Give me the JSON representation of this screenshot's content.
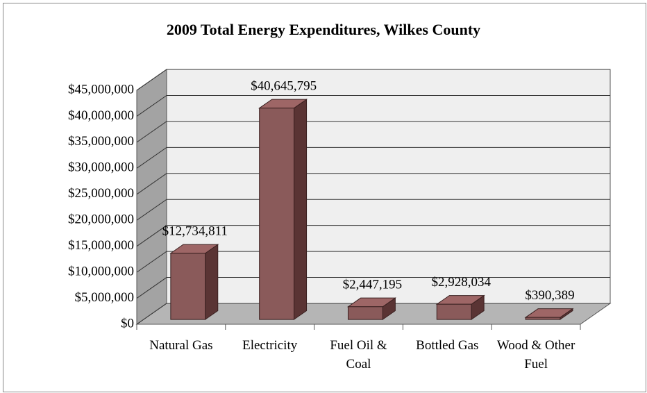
{
  "chart_data": {
    "type": "bar3d",
    "title": "2009 Total Energy Expenditures, Wilkes County",
    "categories": [
      "Natural Gas",
      "Electricity",
      "Fuel Oil & Coal",
      "Bottled Gas",
      "Wood & Other Fuel"
    ],
    "values": [
      12734811,
      40645795,
      2447195,
      2928034,
      390389
    ],
    "value_labels": [
      "$12,734,811",
      "$40,645,795",
      "$2,447,195",
      "$2,928,034",
      "$390,389"
    ],
    "color": "#8a5a5a",
    "ylim": [
      0,
      45000000
    ],
    "yticks": [
      {
        "value": 0,
        "label": "$0"
      },
      {
        "value": 5000000,
        "label": "$5,000,000"
      },
      {
        "value": 10000000,
        "label": "$10,000,000"
      },
      {
        "value": 15000000,
        "label": "$15,000,000"
      },
      {
        "value": 20000000,
        "label": "$20,000,000"
      },
      {
        "value": 25000000,
        "label": "$25,000,000"
      },
      {
        "value": 30000000,
        "label": "$30,000,000"
      },
      {
        "value": 35000000,
        "label": "$35,000,000"
      },
      {
        "value": 40000000,
        "label": "$40,000,000"
      },
      {
        "value": 45000000,
        "label": "$45,000,000"
      }
    ],
    "grid": true
  }
}
